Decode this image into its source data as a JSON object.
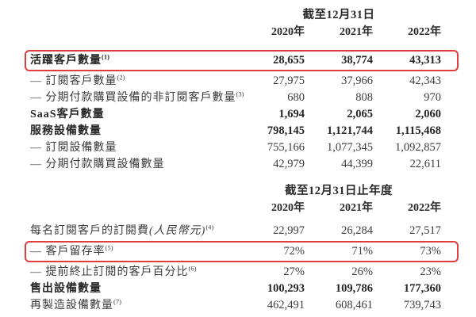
{
  "page": {
    "background_color": "#ffffff",
    "text_color": "#3c3c3c",
    "bold_text_color": "#262626",
    "highlight_box_color": "#e03c3c"
  },
  "tables": [
    {
      "period_header": "截至12月31日",
      "year_headers": [
        "2020年",
        "2021年",
        "2022年"
      ],
      "rows": [
        {
          "label": "活躍客戶數量",
          "sup": "(1)",
          "values": [
            "28,655",
            "38,774",
            "43,313"
          ],
          "bold": true,
          "boxed": true
        },
        {
          "label": "— 訂閱客戶數量",
          "sup": "(2)",
          "values": [
            "27,975",
            "37,966",
            "42,343"
          ]
        },
        {
          "label": "— 分期付款購買設備的非訂閱客戶數量",
          "sup": "(3)",
          "values": [
            "680",
            "808",
            "970"
          ]
        },
        {
          "label": "SaaS客戶數量",
          "values": [
            "1,694",
            "2,065",
            "2,060"
          ],
          "bold": true
        },
        {
          "label": "服務設備數量",
          "values": [
            "798,145",
            "1,121,744",
            "1,115,468"
          ],
          "bold": true
        },
        {
          "label": "— 訂閱設備數量",
          "values": [
            "755,166",
            "1,077,345",
            "1,092,857"
          ]
        },
        {
          "label": "— 分期付款購買設備數量",
          "values": [
            "42,979",
            "44,399",
            "22,611"
          ]
        }
      ]
    },
    {
      "period_header": "截至12月31日止年度",
      "year_headers": [
        "2020年",
        "2021年",
        "2022年"
      ],
      "rows": [
        {
          "label": "每名訂閱客戶的訂閱費",
          "italic": "(人民幣元)",
          "sup": "(4)",
          "values": [
            "22,997",
            "26,284",
            "27,517"
          ]
        },
        {
          "label": "— 客戶留存率",
          "sup": "(5)",
          "values": [
            "72%",
            "71%",
            "73%"
          ],
          "boxed": true
        },
        {
          "label": "— 提前終止訂閱的客戶百分比",
          "sup": "(6)",
          "values": [
            "27%",
            "26%",
            "23%"
          ]
        },
        {
          "label": "售出設備數量",
          "values": [
            "100,293",
            "109,786",
            "177,360"
          ],
          "bold": true
        },
        {
          "label": "再製造設備數量",
          "sup": "(7)",
          "values": [
            "462,491",
            "608,461",
            "739,743"
          ]
        }
      ]
    }
  ]
}
